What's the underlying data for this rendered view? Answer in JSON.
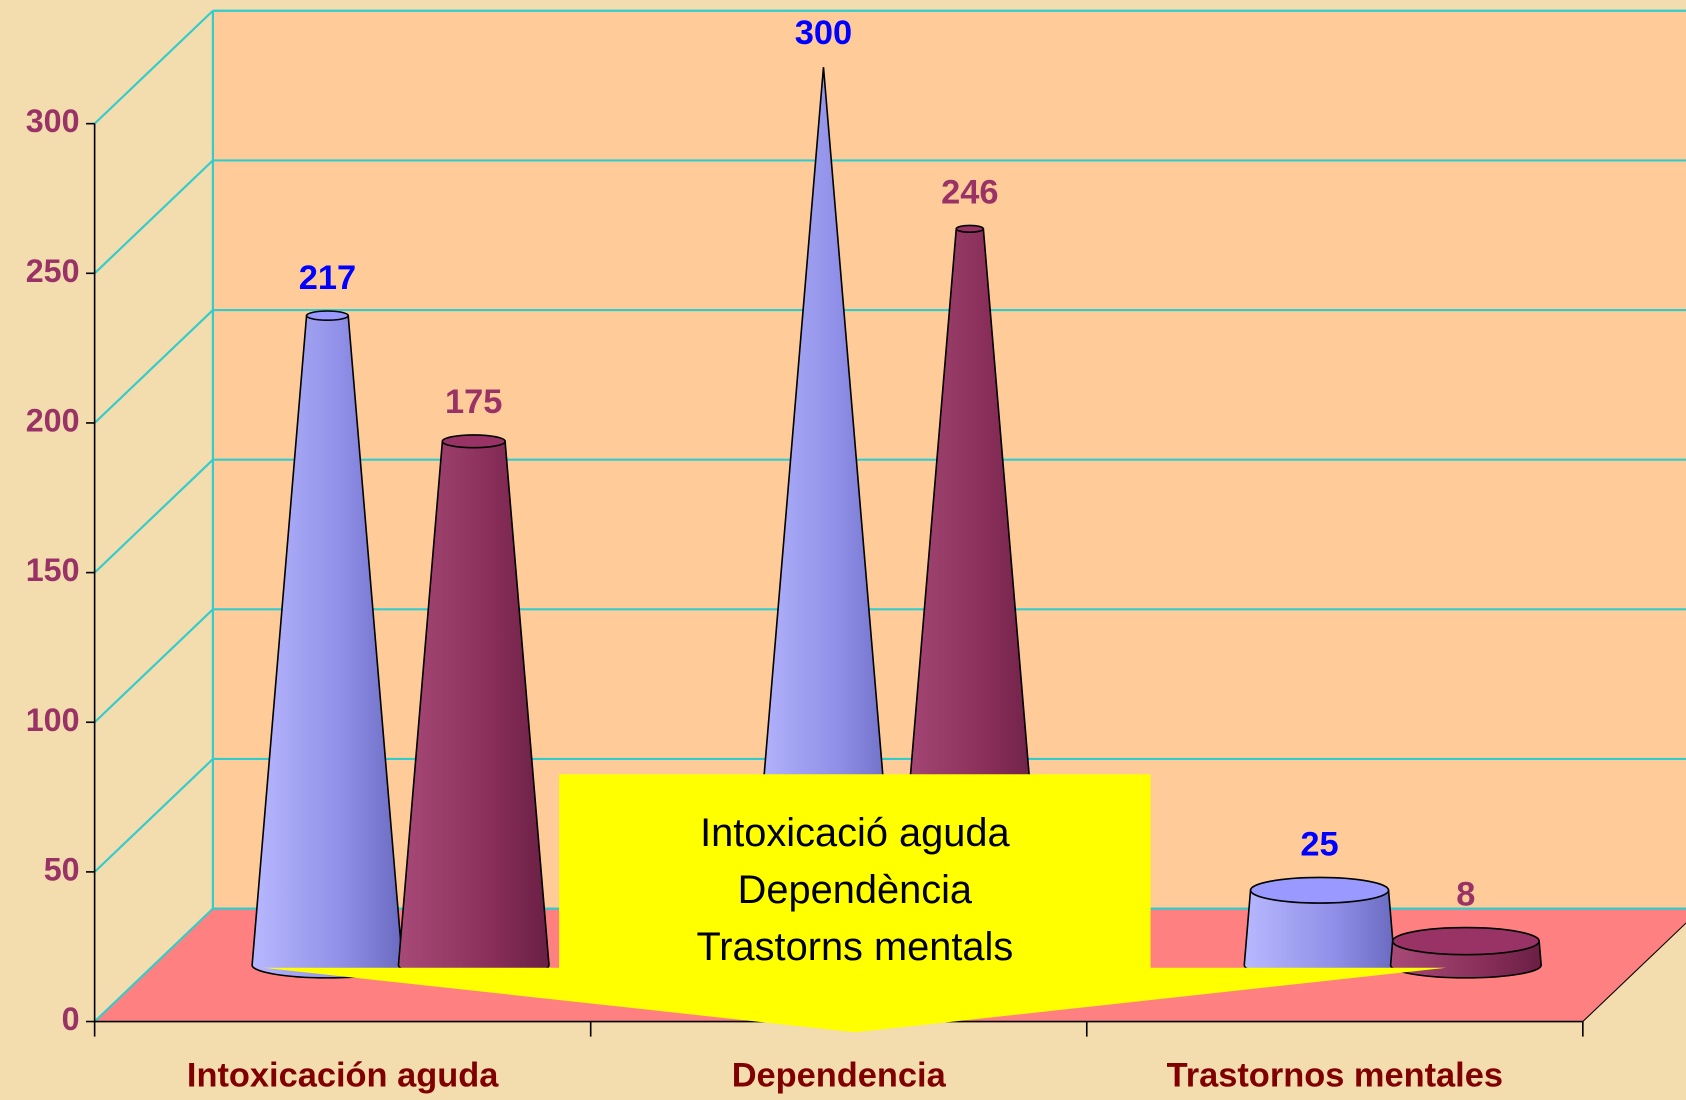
{
  "chart_data": {
    "type": "cone3d",
    "categories": [
      "Intoxicación aguda",
      "Dependencia",
      "Trastornos mentales"
    ],
    "series": [
      {
        "color": "#9999ff",
        "label_color": "#0000ff",
        "values": [
          217,
          300,
          25
        ]
      },
      {
        "color": "#993366",
        "label_color": "#993366",
        "values": [
          175,
          246,
          8
        ]
      }
    ],
    "ylim": [
      0,
      300
    ],
    "yticks": [
      0,
      50,
      100,
      150,
      200,
      250,
      300
    ],
    "grid": true,
    "annotation": [
      "Intoxicació aguda",
      "Dependència",
      "Trastorns mentals"
    ]
  }
}
